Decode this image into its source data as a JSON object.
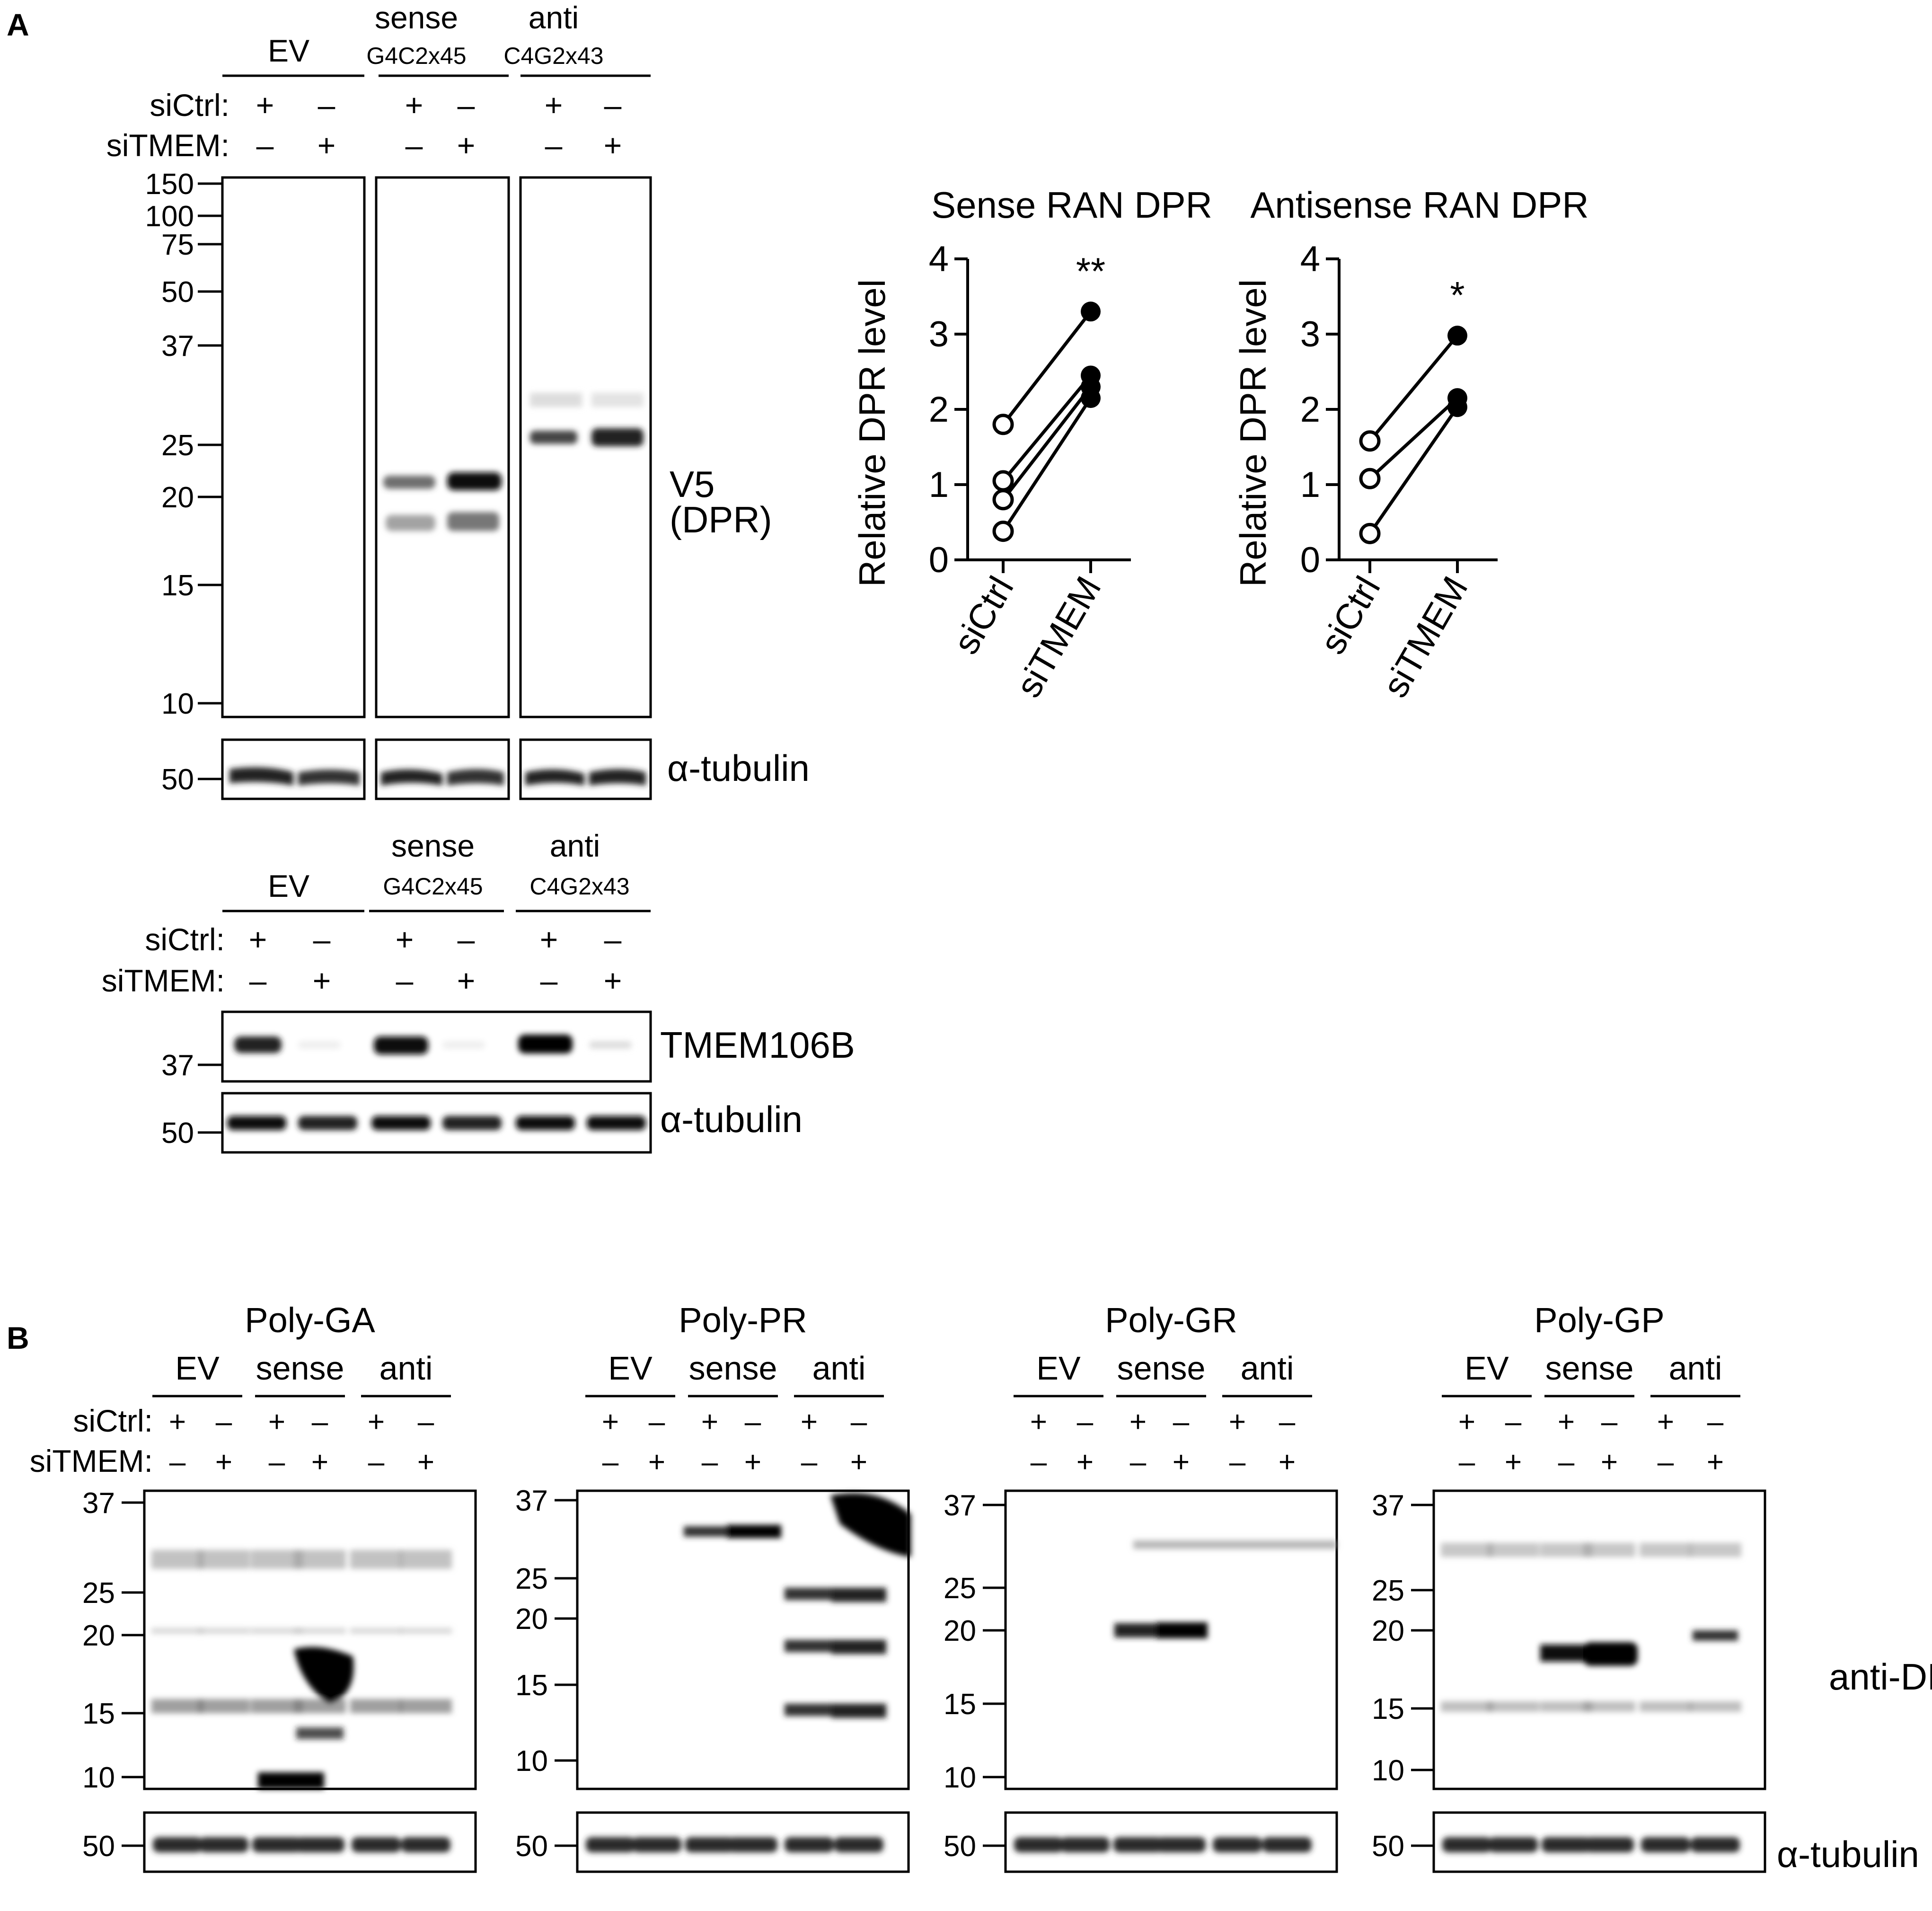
{
  "panel_a": {
    "letter": "A",
    "blot_dpr": {
      "groups": [
        {
          "label": "EV",
          "sublabel": ""
        },
        {
          "label": "sense",
          "sublabel": "G4C2x45"
        },
        {
          "label": "anti",
          "sublabel": "C4G2x43"
        }
      ],
      "row_labels": [
        "siCtrl:",
        "siTMEM:"
      ],
      "siCtrl_signs": [
        "+",
        "–",
        "+",
        "–",
        "+",
        "–"
      ],
      "siTMEM_signs": [
        "–",
        "+",
        "–",
        "+",
        "–",
        "+"
      ],
      "mw_markers": [
        "150",
        "100",
        "75",
        "50",
        "37",
        "25",
        "20",
        "15",
        "10"
      ],
      "right_label_1": "V5",
      "right_label_2": "(DPR)",
      "tubulin_mw": "50",
      "tubulin_label": "α-tubulin"
    },
    "blot_tmem": {
      "groups": [
        {
          "label": "EV",
          "sublabel": ""
        },
        {
          "label": "sense",
          "sublabel": "G4C2x45"
        },
        {
          "label": "anti",
          "sublabel": "C4G2x43"
        }
      ],
      "row_labels": [
        "siCtrl:",
        "siTMEM:"
      ],
      "siCtrl_signs": [
        "+",
        "–",
        "+",
        "–",
        "+",
        "–"
      ],
      "siTMEM_signs": [
        "–",
        "+",
        "–",
        "+",
        "–",
        "+"
      ],
      "tmem_mw": "37",
      "tmem_label": "TMEM106B",
      "tubulin_mw": "50",
      "tubulin_label": "α-tubulin"
    }
  },
  "panel_b": {
    "letter": "B",
    "blots": [
      {
        "title": "Poly-GA",
        "groups": [
          "EV",
          "sense",
          "anti"
        ],
        "row_labels": [
          "siCtrl:",
          "siTMEM:"
        ],
        "mw": [
          "37",
          "25",
          "20",
          "15",
          "10"
        ],
        "tub_mw": "50"
      },
      {
        "title": "Poly-PR",
        "groups": [
          "EV",
          "sense",
          "anti"
        ],
        "row_labels": [
          "",
          ""
        ],
        "mw": [
          "37",
          "25",
          "20",
          "15",
          "10"
        ],
        "tub_mw": "50"
      },
      {
        "title": "Poly-GR",
        "groups": [
          "EV",
          "sense",
          "anti"
        ],
        "row_labels": [
          "",
          ""
        ],
        "mw": [
          "37",
          "25",
          "20",
          "15",
          "10"
        ],
        "tub_mw": "50"
      },
      {
        "title": "Poly-GP",
        "groups": [
          "EV",
          "sense",
          "anti"
        ],
        "row_labels": [
          "",
          ""
        ],
        "mw": [
          "37",
          "25",
          "20",
          "15",
          "10"
        ],
        "tub_mw": "50"
      }
    ],
    "siCtrl_signs": [
      "+",
      "–",
      "+",
      "–",
      "+",
      "–"
    ],
    "siTMEM_signs": [
      "–",
      "+",
      "–",
      "+",
      "–",
      "+"
    ],
    "right_label": "anti-DPR",
    "tubulin_label": "α-tubulin"
  },
  "chart_data": [
    {
      "type": "scatter",
      "title": "Sense RAN DPR",
      "ylabel": "Relative DPR level",
      "categories": [
        "siCtrl",
        "siTMEM"
      ],
      "ylim": [
        0,
        4
      ],
      "yticks": [
        "0",
        "1",
        "2",
        "3",
        "4"
      ],
      "pairs": [
        [
          1.8,
          3.3
        ],
        [
          1.05,
          2.45
        ],
        [
          0.8,
          2.3
        ],
        [
          0.38,
          2.15
        ]
      ],
      "significance": "**"
    },
    {
      "type": "scatter",
      "title": "Antisense RAN DPR",
      "ylabel": "Relative DPR level",
      "categories": [
        "siCtrl",
        "siTMEM"
      ],
      "ylim": [
        0,
        4
      ],
      "yticks": [
        "0",
        "1",
        "2",
        "3",
        "4"
      ],
      "pairs": [
        [
          1.58,
          2.98
        ],
        [
          1.08,
          2.15
        ],
        [
          0.35,
          2.03
        ]
      ],
      "significance": "*"
    }
  ]
}
